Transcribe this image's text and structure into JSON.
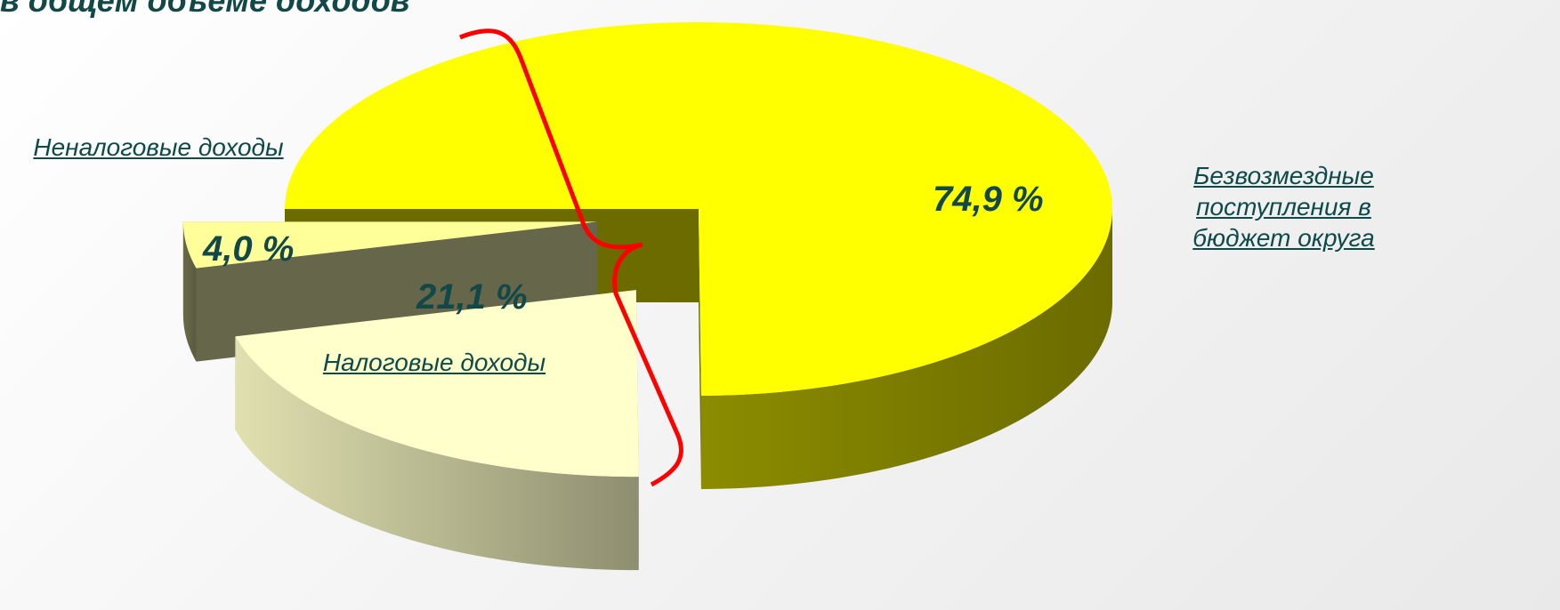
{
  "chart_data": {
    "type": "pie",
    "title": "в общем объеме доходов",
    "categories": [
      "Безвозмездные поступления в бюджет округа",
      "Налоговые доходы",
      "Неналоговые доходы"
    ],
    "values": [
      74.9,
      21.1,
      4.0
    ],
    "value_labels": [
      "74,9 %",
      "21,1 %",
      "4,0 %"
    ],
    "colors": [
      "#ffff00",
      "#ffffcc",
      "#ffff99"
    ]
  }
}
